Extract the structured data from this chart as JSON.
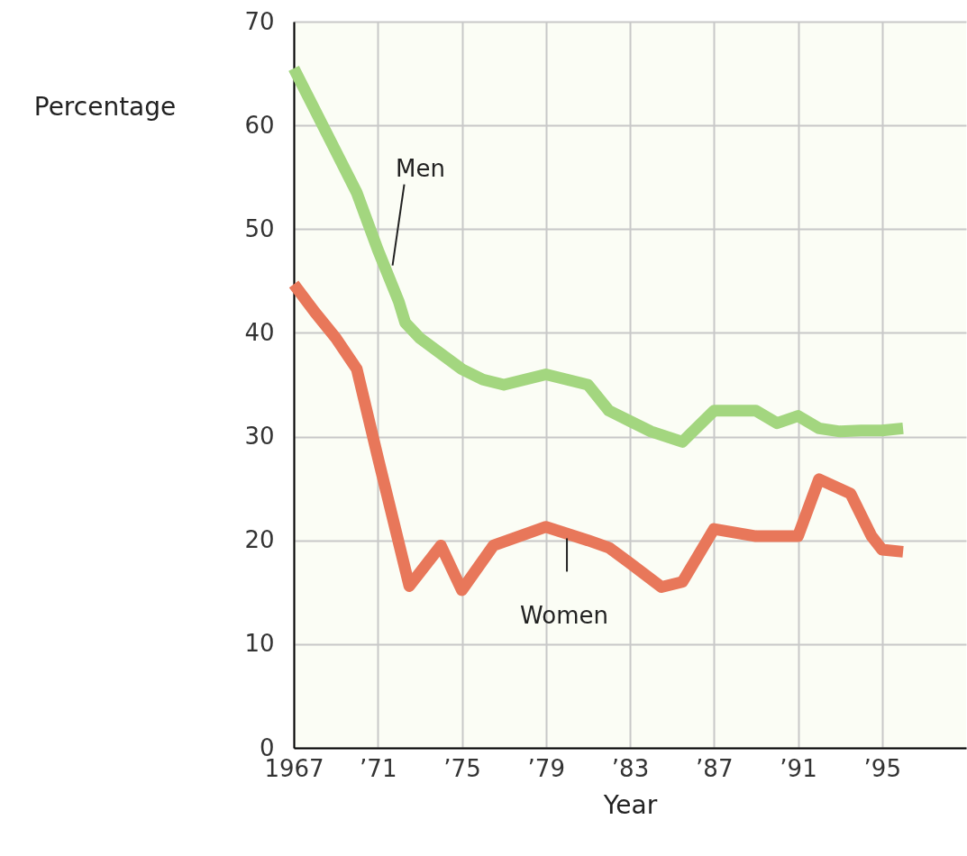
{
  "chart_data": {
    "type": "line",
    "xlabel": "Year",
    "ylabel": "Percentage",
    "xlim": [
      1967,
      1999
    ],
    "ylim": [
      0,
      70
    ],
    "xticks": [
      1967,
      {
        "value": 1971,
        "label": "’71"
      },
      {
        "value": 1975,
        "label": "’75"
      },
      {
        "value": 1979,
        "label": "’79"
      },
      {
        "value": 1983,
        "label": "’83"
      },
      {
        "value": 1987,
        "label": "’87"
      },
      {
        "value": 1991,
        "label": "’91"
      },
      {
        "value": 1995,
        "label": "’95"
      }
    ],
    "yticks": [
      0,
      10,
      20,
      30,
      40,
      50,
      60,
      70
    ],
    "grid": true,
    "line_style": "solid",
    "marker": "none",
    "series": [
      {
        "color": "#a3d67f",
        "x": [
          1967,
          1968,
          1969,
          1970,
          1971,
          1972,
          1972.3,
          1973,
          1974,
          1975,
          1976,
          1977,
          1978,
          1979,
          1980,
          1981,
          1982,
          1983,
          1984,
          1985.5,
          1987,
          1988,
          1989,
          1990,
          1991,
          1992,
          1993,
          1994,
          1995,
          1996
        ],
        "values": [
          65.5,
          61.5,
          57.5,
          53.5,
          48,
          43,
          41,
          39.5,
          38,
          36.5,
          35.5,
          35,
          35.5,
          36,
          35.5,
          35,
          32.5,
          31.5,
          30.5,
          29.5,
          32.5,
          32.5,
          32.5,
          31.3,
          32,
          30.8,
          30.5,
          30.6,
          30.6,
          30.8
        ]
      },
      {
        "color": "#e8775a",
        "x": [
          1967,
          1968,
          1969,
          1970,
          1971,
          1972.5,
          1974,
          1975,
          1976.5,
          1979,
          1981,
          1982,
          1983,
          1984.5,
          1985.5,
          1987,
          1989,
          1991,
          1992,
          1993.5,
          1994.5,
          1995,
          1996
        ],
        "values": [
          44.7,
          42,
          39.5,
          36.5,
          28,
          15.6,
          19.5,
          15.2,
          19.5,
          21.3,
          20,
          19.3,
          17.8,
          15.5,
          16,
          21.1,
          20.4,
          20.4,
          25.9,
          24.5,
          20.4,
          19.1,
          18.9
        ]
      }
    ],
    "annotations": [
      {
        "text": "Men",
        "x": 1971.7,
        "y": 46.5
      },
      {
        "text": "Women",
        "x": 1980,
        "y": 20.2
      }
    ]
  }
}
